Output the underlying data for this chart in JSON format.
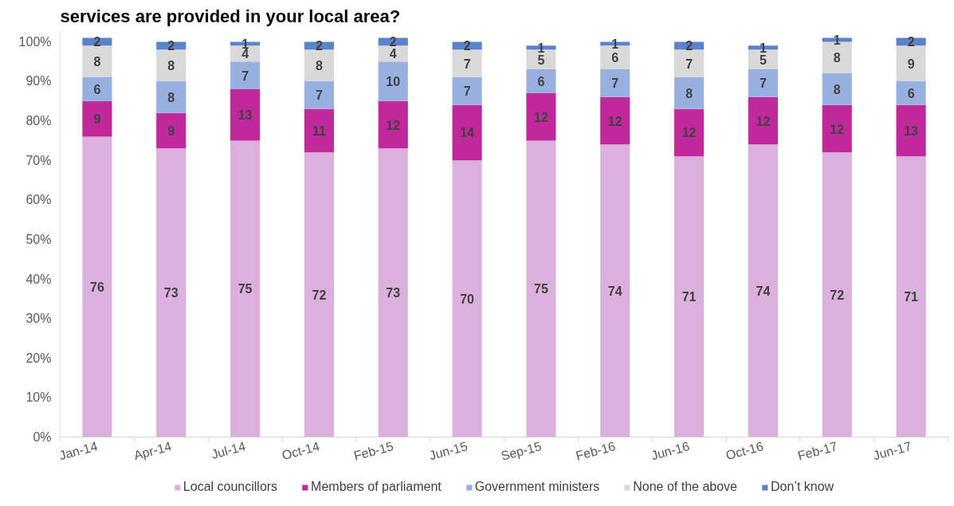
{
  "chart_data": {
    "type": "bar",
    "title": "services are provided in your local area?",
    "categories": [
      "Jan-14",
      "Apr-14",
      "Jul-14",
      "Oct-14",
      "Feb-15",
      "Jun-15",
      "Sep-15",
      "Feb-16",
      "Jun-16",
      "Oct-16",
      "Feb-17",
      "Jun-17"
    ],
    "series": [
      {
        "name": "Local councillors",
        "color": "#dcb0dc",
        "values": [
          76,
          73,
          75,
          72,
          73,
          70,
          75,
          74,
          71,
          74,
          72,
          71
        ]
      },
      {
        "name": "Members of parliament",
        "color": "#c0289b",
        "values": [
          9,
          9,
          13,
          11,
          12,
          14,
          12,
          12,
          12,
          12,
          12,
          13
        ]
      },
      {
        "name": "Government ministers",
        "color": "#98b0e0",
        "values": [
          6,
          8,
          7,
          7,
          10,
          7,
          6,
          7,
          8,
          7,
          8,
          6
        ]
      },
      {
        "name": "None of the above",
        "color": "#d9d9d9",
        "values": [
          8,
          8,
          4,
          8,
          4,
          7,
          5,
          6,
          7,
          5,
          8,
          9
        ]
      },
      {
        "name": "Don’t know",
        "color": "#5b83cc",
        "values": [
          2,
          2,
          1,
          2,
          2,
          2,
          1,
          1,
          2,
          1,
          1,
          2
        ]
      }
    ],
    "stacked": true,
    "data_labels": true,
    "ylim": [
      0,
      103
    ],
    "yticks": [
      {
        "value": 0,
        "label": "0%"
      },
      {
        "value": 10,
        "label": "10%"
      },
      {
        "value": 20,
        "label": "20%"
      },
      {
        "value": 30,
        "label": "30%"
      },
      {
        "value": 40,
        "label": "40%"
      },
      {
        "value": 50,
        "label": "50%"
      },
      {
        "value": 60,
        "label": "60%"
      },
      {
        "value": 70,
        "label": "70%"
      },
      {
        "value": 80,
        "label": "80%"
      },
      {
        "value": 90,
        "label": "90%"
      },
      {
        "value": 100,
        "label": "100%"
      }
    ],
    "grid": false,
    "legend": "bottom"
  }
}
